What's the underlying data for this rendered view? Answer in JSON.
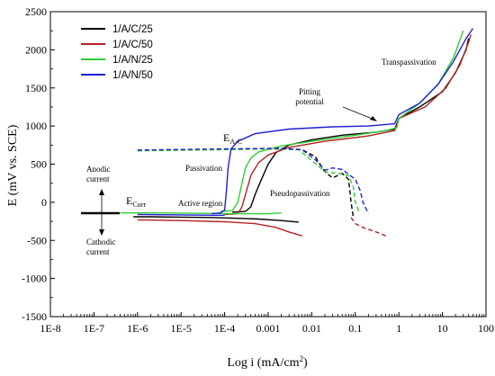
{
  "chart_data": {
    "type": "line",
    "xlabel": "Log i (mA/cm²)",
    "ylabel": "E (mV vs. SCE)",
    "xscale": "log",
    "xlim": [
      1e-08,
      100
    ],
    "ylim": [
      -1500,
      2500
    ],
    "grid": false,
    "legend_position": "top-left",
    "x_tick_labels": [
      "1E-8",
      "1E-7",
      "1E-6",
      "1E-5",
      "1E-4",
      "0.001",
      "0.01",
      "0.1",
      "1",
      "10",
      "100"
    ],
    "y_tick_labels": [
      "-1500",
      "-1000",
      "-500",
      "0",
      "500",
      "1000",
      "1500",
      "2000",
      "2500"
    ],
    "series": [
      {
        "name": "1/A/C/25",
        "color": "#000000",
        "cathodic": [
          [
            8e-07,
            -190
          ],
          [
            2e-06,
            -190
          ],
          [
            1e-05,
            -195
          ],
          [
            5e-05,
            -200
          ],
          [
            0.0002,
            -210
          ],
          [
            0.0006,
            -220
          ],
          [
            0.002,
            -240
          ],
          [
            0.005,
            -260
          ]
        ],
        "anodic": [
          [
            0.00015,
            -130
          ],
          [
            0.0003,
            -120
          ],
          [
            0.0004,
            -60
          ],
          [
            0.0005,
            100
          ],
          [
            0.0007,
            300
          ],
          [
            0.001,
            500
          ],
          [
            0.0015,
            650
          ],
          [
            0.003,
            750
          ],
          [
            0.01,
            820
          ],
          [
            0.05,
            880
          ],
          [
            0.3,
            920
          ],
          [
            0.8,
            960
          ],
          [
            1,
            1100
          ],
          [
            3,
            1250
          ],
          [
            10,
            1450
          ],
          [
            20,
            1700
          ],
          [
            35,
            2000
          ],
          [
            40,
            2150
          ]
        ],
        "dashed": [
          [
            1e-06,
            680
          ],
          [
            3e-05,
            690
          ],
          [
            0.0003,
            700
          ],
          [
            0.002,
            710
          ],
          [
            0.006,
            690
          ],
          [
            0.012,
            600
          ],
          [
            0.02,
            400
          ],
          [
            0.03,
            320
          ],
          [
            0.05,
            380
          ],
          [
            0.07,
            300
          ],
          [
            0.08,
            0
          ],
          [
            0.09,
            -200
          ]
        ]
      },
      {
        "name": "1/A/C/50",
        "color": "#b22222",
        "cathodic": [
          [
            1e-06,
            -230
          ],
          [
            1e-05,
            -240
          ],
          [
            0.0001,
            -255
          ],
          [
            0.0005,
            -280
          ],
          [
            0.0015,
            -330
          ],
          [
            0.003,
            -390
          ],
          [
            0.006,
            -440
          ]
        ],
        "anodic": [
          [
            0.0001,
            -160
          ],
          [
            0.0002,
            -150
          ],
          [
            0.00025,
            -60
          ],
          [
            0.0003,
            100
          ],
          [
            0.0004,
            350
          ],
          [
            0.0006,
            520
          ],
          [
            0.001,
            620
          ],
          [
            0.003,
            720
          ],
          [
            0.02,
            800
          ],
          [
            0.2,
            870
          ],
          [
            0.8,
            940
          ],
          [
            1,
            1100
          ],
          [
            4,
            1250
          ],
          [
            12,
            1500
          ],
          [
            25,
            1800
          ],
          [
            40,
            2100
          ],
          [
            45,
            2200
          ]
        ],
        "dashed": [
          [
            0.08,
            -200
          ],
          [
            0.1,
            -280
          ],
          [
            0.15,
            -330
          ],
          [
            0.3,
            -390
          ],
          [
            0.5,
            -440
          ]
        ]
      },
      {
        "name": "1/A/N/25",
        "color": "#33cc33",
        "cathodic": [
          [
            4e-07,
            -140
          ],
          [
            3e-06,
            -140
          ],
          [
            3e-05,
            -145
          ],
          [
            0.0003,
            -150
          ],
          [
            0.001,
            -150
          ],
          [
            0.002,
            -140
          ]
        ],
        "anodic": [
          [
            8e-05,
            -120
          ],
          [
            0.00015,
            -110
          ],
          [
            0.0002,
            0
          ],
          [
            0.00025,
            250
          ],
          [
            0.0003,
            450
          ],
          [
            0.0004,
            580
          ],
          [
            0.0006,
            660
          ],
          [
            0.002,
            740
          ],
          [
            0.01,
            800
          ],
          [
            0.1,
            880
          ],
          [
            0.5,
            940
          ],
          [
            0.9,
            980
          ],
          [
            1,
            1100
          ],
          [
            3,
            1300
          ],
          [
            8,
            1550
          ],
          [
            18,
            1900
          ],
          [
            30,
            2250
          ]
        ],
        "dashed": [
          [
            1e-06,
            675
          ],
          [
            0.0001,
            690
          ],
          [
            0.001,
            700
          ],
          [
            0.005,
            690
          ],
          [
            0.01,
            550
          ],
          [
            0.02,
            400
          ],
          [
            0.04,
            380
          ],
          [
            0.07,
            350
          ],
          [
            0.09,
            200
          ],
          [
            0.1,
            0
          ],
          [
            0.12,
            -120
          ]
        ]
      },
      {
        "name": "1/A/N/50",
        "color": "#1f1fd6",
        "cathodic": [
          [
            1e-06,
            -160
          ],
          [
            1e-05,
            -165
          ],
          [
            5e-05,
            -170
          ],
          [
            0.0001,
            -170
          ]
        ],
        "anodic": [
          [
            5e-05,
            -150
          ],
          [
            8e-05,
            -140
          ],
          [
            0.0001,
            -100
          ],
          [
            0.00011,
            150
          ],
          [
            0.00012,
            450
          ],
          [
            0.00014,
            700
          ],
          [
            0.0002,
            800
          ],
          [
            0.0005,
            900
          ],
          [
            0.003,
            960
          ],
          [
            0.03,
            990
          ],
          [
            0.2,
            1000
          ],
          [
            0.8,
            1030
          ],
          [
            1,
            1150
          ],
          [
            3,
            1300
          ],
          [
            8,
            1550
          ],
          [
            18,
            1850
          ],
          [
            35,
            2150
          ],
          [
            50,
            2280
          ]
        ],
        "dashed": [
          [
            1e-06,
            685
          ],
          [
            0.0001,
            700
          ],
          [
            0.002,
            705
          ],
          [
            0.006,
            690
          ],
          [
            0.012,
            560
          ],
          [
            0.02,
            420
          ],
          [
            0.03,
            450
          ],
          [
            0.05,
            430
          ],
          [
            0.1,
            300
          ],
          [
            0.13,
            150
          ],
          [
            0.15,
            0
          ],
          [
            0.2,
            -150
          ]
        ]
      }
    ],
    "annotations": {
      "transpassivation": "Transpassivation",
      "pitting_line1": "Pitting",
      "pitting_line2": "potential",
      "e_ac_main": "E",
      "e_ac_sub": "A-C",
      "passivation": "Passivation",
      "pseudopassivation": "Pseudopassivation",
      "active_region": "Active region",
      "e_corr_main": "E",
      "e_corr_sub": "Corr",
      "anodic_line1": "Anodic",
      "anodic_line2": "current",
      "cathodic_line1": "Cathodic",
      "cathodic_line2": "current"
    }
  }
}
